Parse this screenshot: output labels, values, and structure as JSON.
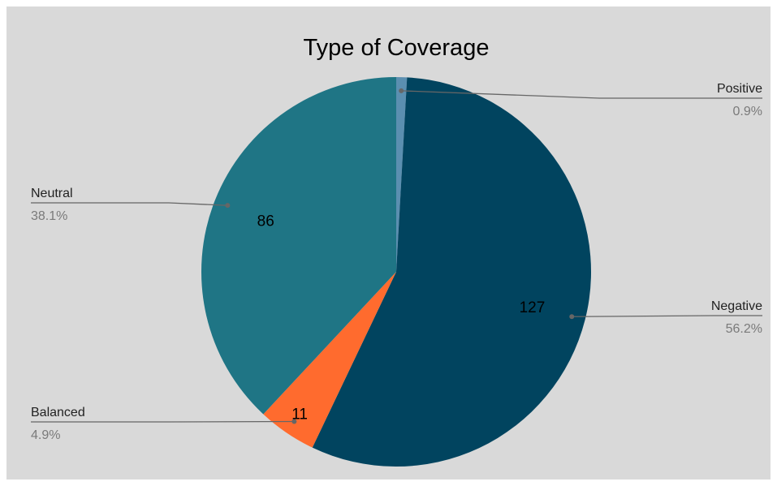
{
  "chart_data": {
    "type": "pie",
    "title": "Type of Coverage",
    "slices": [
      {
        "label": "Positive",
        "value": 2,
        "percent_label": "0.9%",
        "value_label": "",
        "color": "#5b8fb0"
      },
      {
        "label": "Negative",
        "value": 127,
        "percent_label": "56.2%",
        "value_label": "127",
        "color": "#01445f"
      },
      {
        "label": "Balanced",
        "value": 11,
        "percent_label": "4.9%",
        "value_label": "11",
        "color": "#ff6b2e"
      },
      {
        "label": "Neutral",
        "value": 86,
        "percent_label": "38.1%",
        "value_label": "86",
        "color": "#1f7585"
      }
    ],
    "start_angle_deg": 0,
    "direction": "clockwise",
    "legend_placement": "outside labels with leader lines"
  },
  "colors": {
    "background": "#d9d9d9",
    "leader_line": "#666666"
  }
}
